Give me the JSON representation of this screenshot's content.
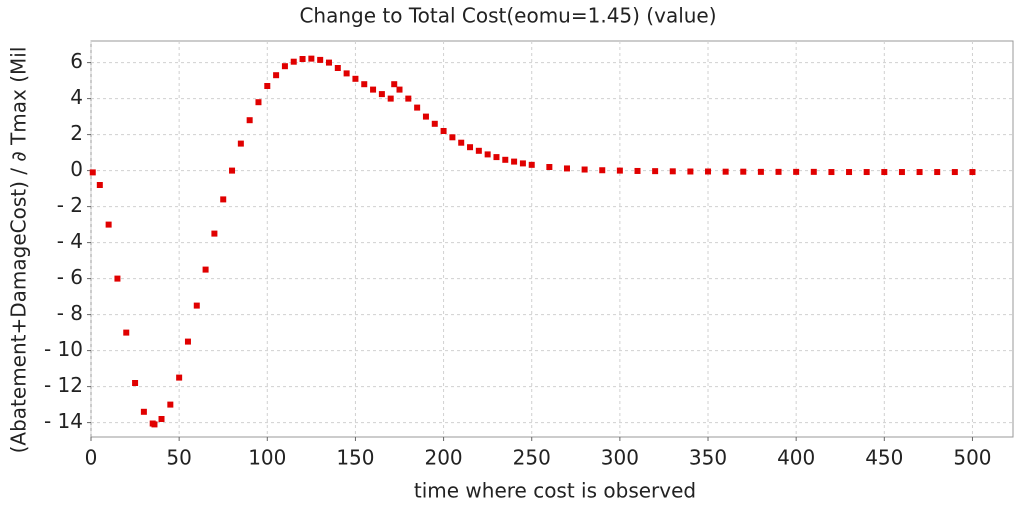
{
  "chart_data": {
    "type": "scatter",
    "title": "Change to Total Cost(eomu=1.45) (value)",
    "x_label": "time where cost is observed",
    "y_label": "(Abatement+DamageCost) / ∂ Tmax (Mil",
    "color": "#e00000",
    "x": [
      1,
      5,
      10,
      15,
      20,
      25,
      30,
      35,
      36,
      40,
      45,
      50,
      55,
      60,
      65,
      70,
      75,
      80,
      85,
      90,
      95,
      100,
      105,
      110,
      115,
      120,
      125,
      130,
      135,
      140,
      145,
      150,
      155,
      160,
      165,
      170,
      172,
      175,
      180,
      185,
      190,
      195,
      200,
      205,
      210,
      215,
      220,
      225,
      230,
      235,
      240,
      245,
      250,
      260,
      270,
      280,
      290,
      300,
      310,
      320,
      330,
      340,
      350,
      360,
      370,
      380,
      390,
      400,
      410,
      420,
      430,
      440,
      450,
      460,
      470,
      480,
      490,
      500
    ],
    "values": [
      -0.1,
      -0.8,
      -3,
      -6,
      -9,
      -11.8,
      -13.4,
      -14.05,
      -14.1,
      -13.8,
      -13,
      -11.5,
      -9.5,
      -7.5,
      -5.5,
      -3.5,
      -1.6,
      0,
      1.5,
      2.8,
      3.8,
      4.7,
      5.3,
      5.8,
      6.05,
      6.2,
      6.22,
      6.15,
      6,
      5.7,
      5.4,
      5.1,
      4.8,
      4.5,
      4.25,
      4,
      4.8,
      4.5,
      4,
      3.5,
      3,
      2.6,
      2.2,
      1.85,
      1.55,
      1.3,
      1.1,
      0.9,
      0.75,
      0.6,
      0.5,
      0.4,
      0.32,
      0.2,
      0.12,
      0.06,
      0.02,
      0,
      -0.02,
      -0.03,
      -0.04,
      -0.05,
      -0.05,
      -0.06,
      -0.06,
      -0.07,
      -0.07,
      -0.07,
      -0.07,
      -0.08,
      -0.08,
      -0.08,
      -0.08,
      -0.08,
      -0.08,
      -0.08,
      -0.08,
      -0.08
    ],
    "xlim": [
      0,
      523
    ],
    "ylim": [
      -14.8,
      7.2
    ],
    "xticks": [
      0,
      50,
      100,
      150,
      200,
      250,
      300,
      350,
      400,
      450,
      500
    ],
    "yticks": [
      {
        "value": -14,
        "label": "- 14"
      },
      {
        "value": -12,
        "label": "- 12"
      },
      {
        "value": -10,
        "label": "- 10"
      },
      {
        "value": -8,
        "label": "- 8"
      },
      {
        "value": -6,
        "label": "- 6"
      },
      {
        "value": -4,
        "label": "- 4"
      },
      {
        "value": -2,
        "label": "- 2"
      },
      0,
      2,
      4,
      6
    ],
    "grid": true
  }
}
